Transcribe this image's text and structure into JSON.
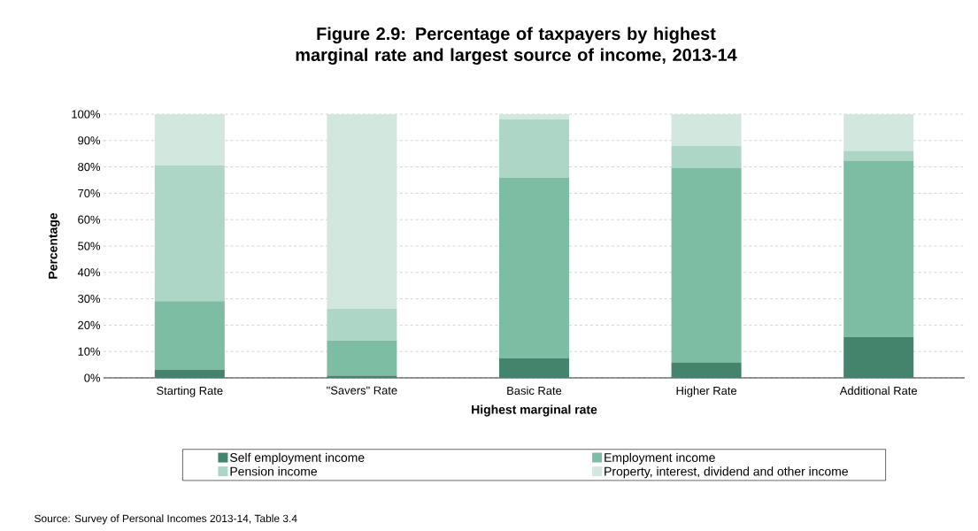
{
  "chart_data": {
    "type": "bar",
    "stacked": true,
    "title": "Figure 2.9: Percentage of taxpayers by highest marginal rate and largest source of income, 2013-14",
    "xlabel": "Highest marginal rate",
    "ylabel": "Percentage",
    "categories": [
      "Starting Rate",
      "\"Savers\" Rate",
      "Basic Rate",
      "Higher Rate",
      "Additional Rate"
    ],
    "series": [
      {
        "name": "Self employment income",
        "color": "#44836c",
        "values": [
          3.1,
          0.8,
          7.4,
          5.9,
          15.4
        ]
      },
      {
        "name": "Employment income",
        "color": "#7dbda4",
        "values": [
          26.0,
          13.4,
          68.4,
          73.6,
          67.0
        ]
      },
      {
        "name": "Pension income",
        "color": "#aed6c6",
        "values": [
          51.4,
          12.0,
          22.2,
          8.4,
          3.7
        ]
      },
      {
        "name": "Property, interest, dividend and other income",
        "color": "#d2e7de",
        "values": [
          19.5,
          73.8,
          2.0,
          12.1,
          13.9
        ]
      }
    ],
    "ylim": [
      0,
      100
    ],
    "yticks": [
      {
        "value": 0,
        "label": "0%"
      },
      {
        "value": 10,
        "label": "10%"
      },
      {
        "value": 20,
        "label": "20%"
      },
      {
        "value": 30,
        "label": "30%"
      },
      {
        "value": 40,
        "label": "40%"
      },
      {
        "value": 50,
        "label": "50%"
      },
      {
        "value": 60,
        "label": "60%"
      },
      {
        "value": 70,
        "label": "70%"
      },
      {
        "value": 80,
        "label": "80%"
      },
      {
        "value": 90,
        "label": "90%"
      },
      {
        "value": 100,
        "label": "100%"
      }
    ],
    "grid": "y",
    "legend": "bottom",
    "annotations": [
      "Source: Survey of Personal Incomes 2013-14, Table 3.4"
    ]
  }
}
